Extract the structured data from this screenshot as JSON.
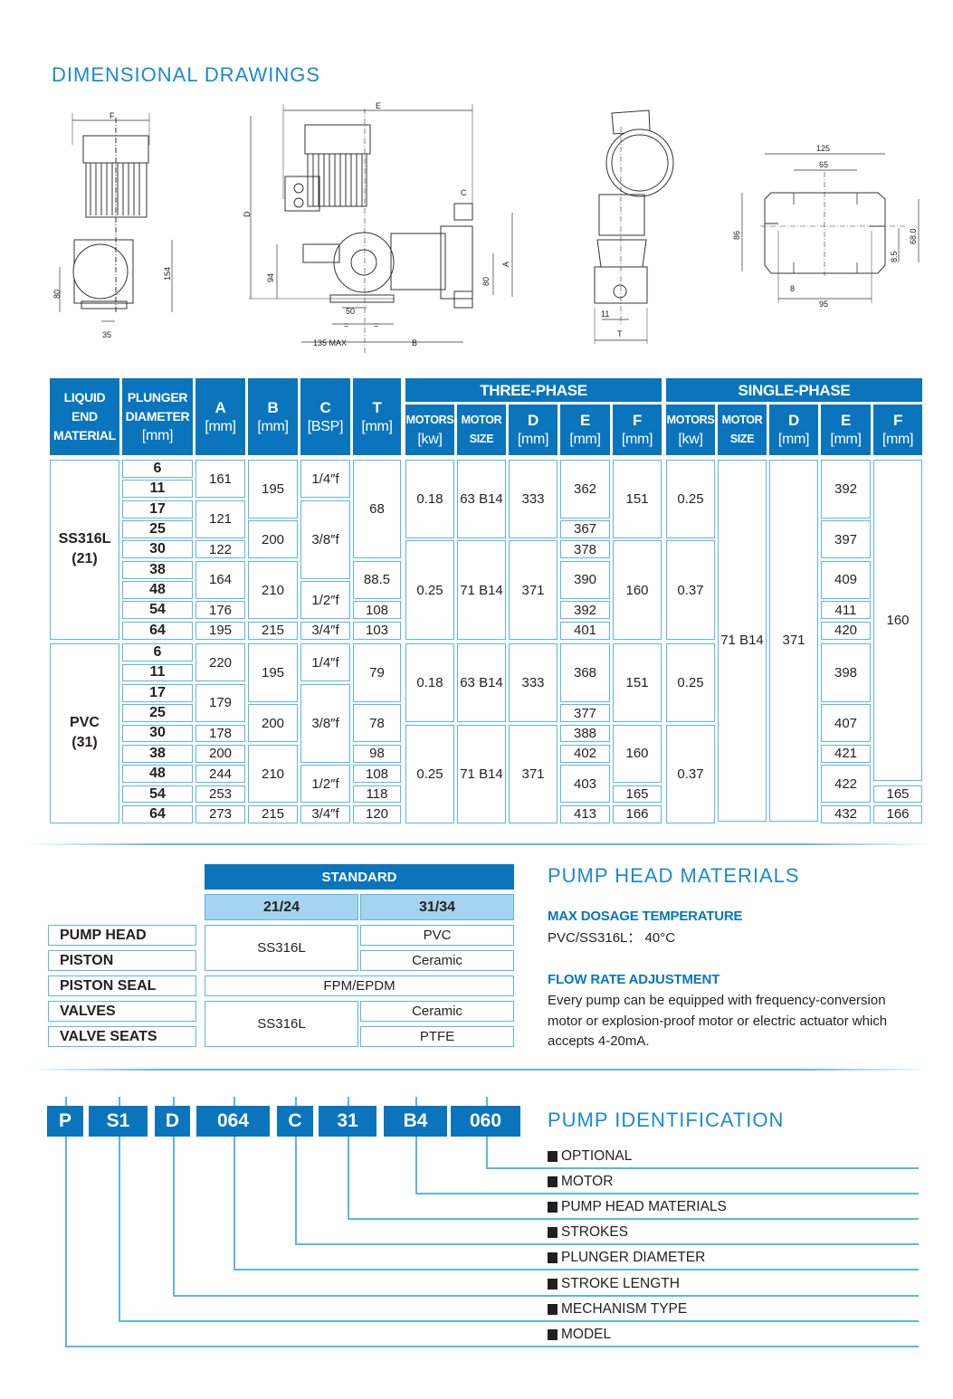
{
  "section_title": "DIMENSIONAL DRAWINGS",
  "drawings": {
    "side_view": {
      "F": "F",
      "d154": "154",
      "d80": "80",
      "d35": "35"
    },
    "front_view": {
      "E": "E",
      "D": "D",
      "C": "C",
      "A": "A",
      "d94": "94",
      "d80": "80",
      "d50": "50",
      "eq1": "=",
      "eq2": "=",
      "max135": "135 MAX",
      "B": "B"
    },
    "end_view": {
      "d11": "11",
      "T": "T"
    },
    "base_plate": {
      "d125": "125",
      "d65": "65",
      "d86": "86",
      "d68": "68.0",
      "d8_5": "8.5",
      "d8": "8",
      "d95": "95"
    }
  },
  "dimensions_table": {
    "headers": {
      "liquid_end_material": [
        "LIQUID",
        "END",
        "MATERIAL"
      ],
      "plunger_diameter": [
        "PLUNGER",
        "DIAMETER",
        "[mm]"
      ],
      "A": [
        "A",
        "[mm]"
      ],
      "B": [
        "B",
        "[mm]"
      ],
      "C": [
        "C",
        "[BSP]"
      ],
      "T": [
        "T",
        "[mm]"
      ],
      "three_phase": "THREE-PHASE",
      "single_phase": "SINGLE-PHASE",
      "motors": [
        "MOTORS",
        "[kw]"
      ],
      "motor_size": [
        "MOTOR",
        "SIZE"
      ],
      "D": [
        "D",
        "[mm]"
      ],
      "E": [
        "E",
        "[mm]"
      ],
      "F": [
        "F",
        "[mm]"
      ]
    },
    "columns": [
      {
        "key": "material",
        "bold": true,
        "cells": [
          {
            "v": "SS316L\n(21)",
            "span": 9
          },
          {
            "v": "PVC\n(31)",
            "span": 9
          }
        ]
      },
      {
        "key": "plunger",
        "bold": true,
        "cells": [
          {
            "v": "6",
            "span": 1
          },
          {
            "v": "11",
            "span": 1
          },
          {
            "v": "17",
            "span": 1
          },
          {
            "v": "25",
            "span": 1
          },
          {
            "v": "30",
            "span": 1
          },
          {
            "v": "38",
            "span": 1
          },
          {
            "v": "48",
            "span": 1
          },
          {
            "v": "54",
            "span": 1
          },
          {
            "v": "64",
            "span": 1
          },
          {
            "v": "6",
            "span": 1
          },
          {
            "v": "11",
            "span": 1
          },
          {
            "v": "17",
            "span": 1
          },
          {
            "v": "25",
            "span": 1
          },
          {
            "v": "30",
            "span": 1
          },
          {
            "v": "38",
            "span": 1
          },
          {
            "v": "48",
            "span": 1
          },
          {
            "v": "54",
            "span": 1
          },
          {
            "v": "64",
            "span": 1
          }
        ]
      },
      {
        "key": "A",
        "cells": [
          {
            "v": "161",
            "span": 2
          },
          {
            "v": "121",
            "span": 2
          },
          {
            "v": "122",
            "span": 1
          },
          {
            "v": "164",
            "span": 2
          },
          {
            "v": "176",
            "span": 1
          },
          {
            "v": "195",
            "span": 1
          },
          {
            "v": "220",
            "span": 2
          },
          {
            "v": "179",
            "span": 2
          },
          {
            "v": "178",
            "span": 1
          },
          {
            "v": "200",
            "span": 1
          },
          {
            "v": "244",
            "span": 1
          },
          {
            "v": "253",
            "span": 1
          },
          {
            "v": "273",
            "span": 1
          }
        ]
      },
      {
        "key": "B",
        "cells": [
          {
            "v": "195",
            "span": 3
          },
          {
            "v": "200",
            "span": 2
          },
          {
            "v": "210",
            "span": 3
          },
          {
            "v": "215",
            "span": 1
          },
          {
            "v": "195",
            "span": 3
          },
          {
            "v": "200",
            "span": 2
          },
          {
            "v": "210",
            "span": 3
          },
          {
            "v": "215",
            "span": 1
          }
        ]
      },
      {
        "key": "C",
        "cells": [
          {
            "v": "1/4″f",
            "span": 2
          },
          {
            "v": "3/8″f",
            "span": 4
          },
          {
            "v": "1/2″f",
            "span": 2
          },
          {
            "v": "3/4″f",
            "span": 1
          },
          {
            "v": "1/4″f",
            "span": 2
          },
          {
            "v": "3/8″f",
            "span": 4
          },
          {
            "v": "1/2″f",
            "span": 2
          },
          {
            "v": "3/4″f",
            "span": 1
          }
        ]
      },
      {
        "key": "T",
        "cells": [
          {
            "v": "68",
            "span": 5
          },
          {
            "v": "88.5",
            "span": 2
          },
          {
            "v": "108",
            "span": 1
          },
          {
            "v": "103",
            "span": 1
          },
          {
            "v": "79",
            "span": 3
          },
          {
            "v": "78",
            "span": 2
          },
          {
            "v": "98",
            "span": 1
          },
          {
            "v": "108",
            "span": 1
          },
          {
            "v": "118",
            "span": 1
          },
          {
            "v": "120",
            "span": 1
          }
        ]
      },
      {
        "key": "tp_motors",
        "cells": [
          {
            "v": "0.18",
            "span": 4
          },
          {
            "v": "0.25",
            "span": 5
          },
          {
            "v": "0.18",
            "span": 4
          },
          {
            "v": "0.25",
            "span": 5
          }
        ]
      },
      {
        "key": "tp_size",
        "cells": [
          {
            "v": "63 B14",
            "span": 4
          },
          {
            "v": "71 B14",
            "span": 5
          },
          {
            "v": "63 B14",
            "span": 4
          },
          {
            "v": "71 B14",
            "span": 5
          }
        ]
      },
      {
        "key": "tp_D",
        "cells": [
          {
            "v": "333",
            "span": 4
          },
          {
            "v": "371",
            "span": 5
          },
          {
            "v": "333",
            "span": 4
          },
          {
            "v": "371",
            "span": 5
          }
        ]
      },
      {
        "key": "tp_E",
        "cells": [
          {
            "v": "362",
            "span": 3
          },
          {
            "v": "367",
            "span": 1
          },
          {
            "v": "378",
            "span": 1
          },
          {
            "v": "390",
            "span": 2
          },
          {
            "v": "392",
            "span": 1
          },
          {
            "v": "401",
            "span": 1
          },
          {
            "v": "368",
            "span": 3
          },
          {
            "v": "377",
            "span": 1
          },
          {
            "v": "388",
            "span": 1
          },
          {
            "v": "402",
            "span": 1
          },
          {
            "v": "403",
            "span": 2
          },
          {
            "v": "413",
            "span": 1
          }
        ]
      },
      {
        "key": "tp_F",
        "cells": [
          {
            "v": "151",
            "span": 4
          },
          {
            "v": "160",
            "span": 5
          },
          {
            "v": "151",
            "span": 4
          },
          {
            "v": "160",
            "span": 3
          },
          {
            "v": "165",
            "span": 1
          },
          {
            "v": "166",
            "span": 1
          }
        ]
      },
      {
        "key": "sp_motors",
        "cells": [
          {
            "v": "0.25",
            "span": 4
          },
          {
            "v": "0.37",
            "span": 5
          },
          {
            "v": "0.25",
            "span": 4
          },
          {
            "v": "0.37",
            "span": 5
          }
        ]
      },
      {
        "key": "sp_size",
        "cells": [
          {
            "v": "71 B14",
            "span": 18
          }
        ]
      },
      {
        "key": "sp_D",
        "cells": [
          {
            "v": "371",
            "span": 18
          }
        ]
      },
      {
        "key": "sp_E",
        "cells": [
          {
            "v": "392",
            "span": 3
          },
          {
            "v": "397",
            "span": 2
          },
          {
            "v": "409",
            "span": 2
          },
          {
            "v": "411",
            "span": 1
          },
          {
            "v": "420",
            "span": 1
          },
          {
            "v": "398",
            "span": 3
          },
          {
            "v": "407",
            "span": 2
          },
          {
            "v": "421",
            "span": 1
          },
          {
            "v": "422",
            "span": 2
          },
          {
            "v": "432",
            "span": 1
          }
        ]
      },
      {
        "key": "sp_F",
        "cells": [
          {
            "v": "160",
            "span": 16
          },
          {
            "v": "165",
            "span": 1
          },
          {
            "v": "166",
            "span": 1
          }
        ]
      }
    ]
  },
  "materials_table": {
    "standard": "STANDARD",
    "col_2124": "21/24",
    "col_3134": "31/34",
    "rows": [
      "PUMP HEAD",
      "PISTON",
      "PISTON SEAL",
      "VALVES",
      "VALVE SEATS"
    ],
    "pump_head_piston_2124": "SS316L",
    "pump_head_3134": "PVC",
    "piston_3134": "Ceramic",
    "piston_seal": "FPM/EPDM",
    "valves_seats_2124": "SS316L",
    "valves_3134": "Ceramic",
    "valve_seats_3134": "PTFE"
  },
  "pump_head_materials": {
    "title": "PUMP HEAD MATERIALS",
    "max_temp_heading": "MAX DOSAGE TEMPERATURE",
    "max_temp_text": "PVC/SS316L： 40°C",
    "flow_heading": "FLOW RATE ADJUSTMENT",
    "flow_text": "Every pump can be equipped with frequency-conversion motor or explosion-proof motor or electric actuator which accepts 4-20mA."
  },
  "pump_identification": {
    "title": "PUMP IDENTIFICATION",
    "code": [
      "P",
      "S1",
      "D",
      "064",
      "C",
      "31",
      "B4",
      "060"
    ],
    "labels": [
      "OPTIONAL",
      "MOTOR",
      "PUMP HEAD MATERIALS",
      "STROKES",
      "PLUNGER DIAMETER",
      "STROKE LENGTH",
      "MECHANISM TYPE",
      "MODEL"
    ]
  },
  "colors": {
    "brand_blue": "#0a75bc",
    "title_blue": "#1a8ad0",
    "border_blue": "#5bb6e3",
    "subheader_blue": "#a6d3f0"
  }
}
